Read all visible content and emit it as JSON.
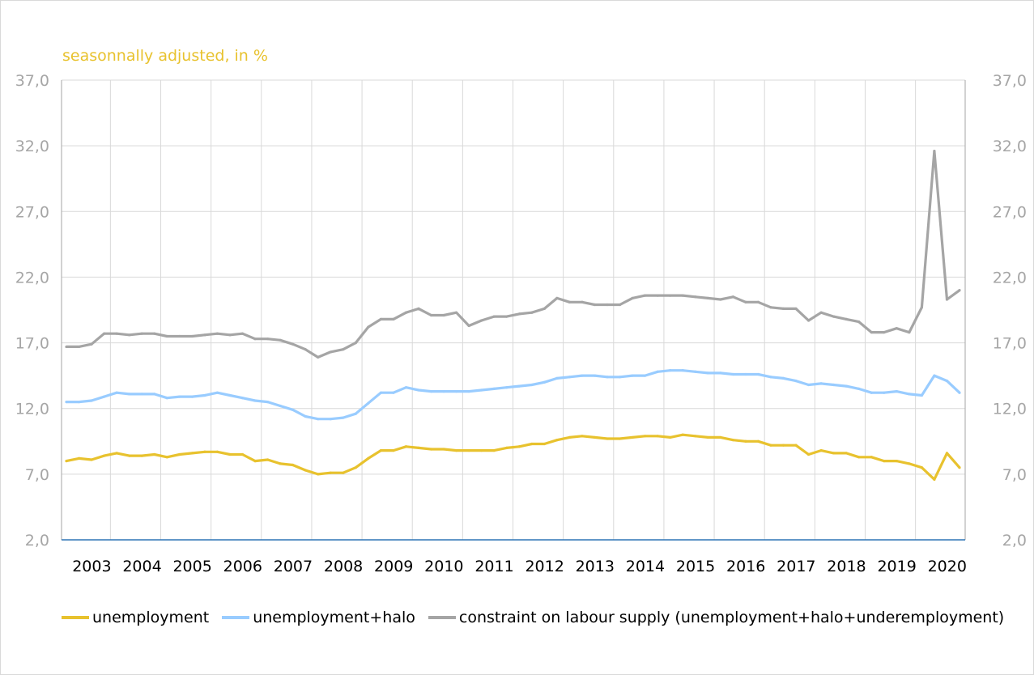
{
  "chart_data": {
    "type": "line",
    "title": "seasonnally adjusted, in %",
    "xlabel": "",
    "ylabel": "",
    "ylim": [
      2.0,
      37.0
    ],
    "yticks": [
      "2,0",
      "7,0",
      "12,0",
      "17,0",
      "22,0",
      "27,0",
      "32,0",
      "37,0"
    ],
    "ytick_values": [
      2,
      7,
      12,
      17,
      22,
      27,
      32,
      37
    ],
    "x_start": "2003 Q1",
    "x_frequency": "quarterly",
    "years": [
      "2003",
      "2004",
      "2005",
      "2006",
      "2007",
      "2008",
      "2009",
      "2010",
      "2011",
      "2012",
      "2013",
      "2014",
      "2015",
      "2016",
      "2017",
      "2018",
      "2019",
      "2020"
    ],
    "grid": true,
    "legend_position": "bottom",
    "series": [
      {
        "name": "unemployment",
        "color": "#E8C22E",
        "values": [
          8.0,
          8.2,
          8.1,
          8.4,
          8.6,
          8.4,
          8.4,
          8.5,
          8.3,
          8.5,
          8.6,
          8.7,
          8.7,
          8.5,
          8.5,
          8.0,
          8.1,
          7.8,
          7.7,
          7.3,
          7.0,
          7.1,
          7.1,
          7.5,
          8.2,
          8.8,
          8.8,
          9.1,
          9.0,
          8.9,
          8.9,
          8.8,
          8.8,
          8.8,
          8.8,
          9.0,
          9.1,
          9.3,
          9.3,
          9.6,
          9.8,
          9.9,
          9.8,
          9.7,
          9.7,
          9.8,
          9.9,
          9.9,
          9.8,
          10.0,
          9.9,
          9.8,
          9.8,
          9.6,
          9.5,
          9.5,
          9.2,
          9.2,
          9.2,
          8.5,
          8.8,
          8.6,
          8.6,
          8.3,
          8.3,
          8.0,
          8.0,
          7.8,
          7.5,
          6.6,
          8.6,
          7.5
        ]
      },
      {
        "name": "unemployment+halo",
        "color": "#99CCFF",
        "values": [
          12.5,
          12.5,
          12.6,
          12.9,
          13.2,
          13.1,
          13.1,
          13.1,
          12.8,
          12.9,
          12.9,
          13.0,
          13.2,
          13.0,
          12.8,
          12.6,
          12.5,
          12.2,
          11.9,
          11.4,
          11.2,
          11.2,
          11.3,
          11.6,
          12.4,
          13.2,
          13.2,
          13.6,
          13.4,
          13.3,
          13.3,
          13.3,
          13.3,
          13.4,
          13.5,
          13.6,
          13.7,
          13.8,
          14.0,
          14.3,
          14.4,
          14.5,
          14.5,
          14.4,
          14.4,
          14.5,
          14.5,
          14.8,
          14.9,
          14.9,
          14.8,
          14.7,
          14.7,
          14.6,
          14.6,
          14.6,
          14.4,
          14.3,
          14.1,
          13.8,
          13.9,
          13.8,
          13.7,
          13.5,
          13.2,
          13.2,
          13.3,
          13.1,
          13.0,
          14.5,
          14.1,
          13.2
        ]
      },
      {
        "name": "constraint on labour supply (unemployment+halo+underemployment)",
        "color": "#A5A5A5",
        "values": [
          16.7,
          16.7,
          16.9,
          17.7,
          17.7,
          17.6,
          17.7,
          17.7,
          17.5,
          17.5,
          17.5,
          17.6,
          17.7,
          17.6,
          17.7,
          17.3,
          17.3,
          17.2,
          16.9,
          16.5,
          15.9,
          16.3,
          16.5,
          17.0,
          18.2,
          18.8,
          18.8,
          19.3,
          19.6,
          19.1,
          19.1,
          19.3,
          18.3,
          18.7,
          19.0,
          19.0,
          19.2,
          19.3,
          19.6,
          20.4,
          20.1,
          20.1,
          19.9,
          19.9,
          19.9,
          20.4,
          20.6,
          20.6,
          20.6,
          20.6,
          20.5,
          20.4,
          20.3,
          20.5,
          20.1,
          20.1,
          19.7,
          19.6,
          19.6,
          18.7,
          19.3,
          19.0,
          18.8,
          18.6,
          17.8,
          17.8,
          18.1,
          17.8,
          19.7,
          31.6,
          20.3,
          21.0
        ]
      }
    ]
  }
}
